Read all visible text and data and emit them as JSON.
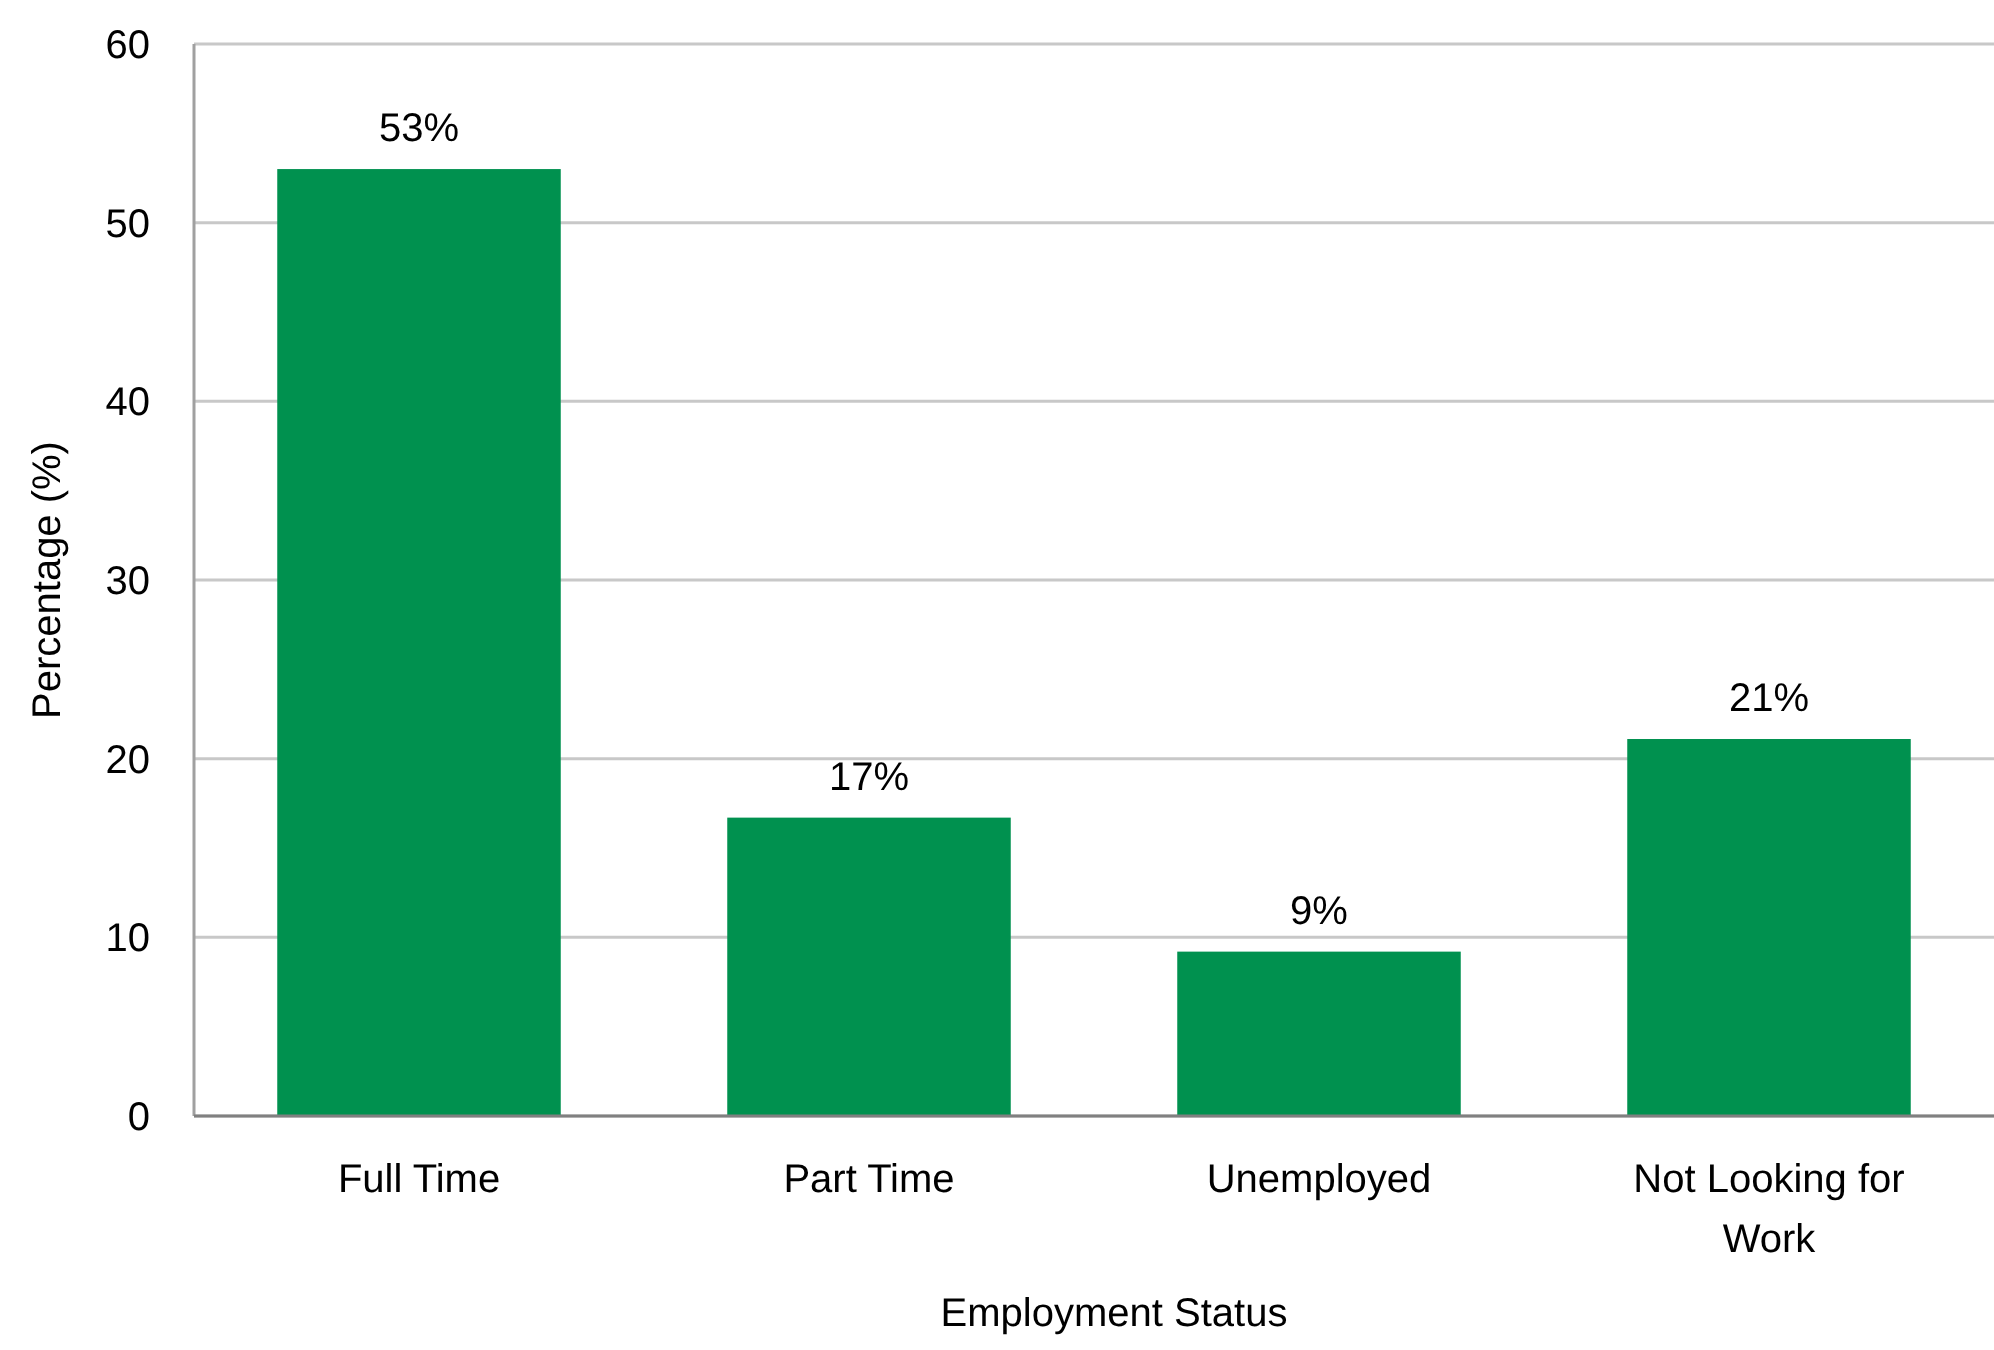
{
  "chart_data": {
    "type": "bar",
    "xlabel": "Employment Status",
    "ylabel": "Percentage (%)",
    "categories": [
      "Full Time",
      "Part Time",
      "Unemployed",
      "Not Looking for Work"
    ],
    "values": [
      53,
      16.7,
      9.2,
      21.1
    ],
    "value_labels": [
      "53%",
      "17%",
      "9%",
      "21%"
    ],
    "color": "#00914f",
    "ylim": [
      0,
      60
    ],
    "yticks": [
      0,
      10,
      20,
      30,
      40,
      50,
      60
    ],
    "grid": "y"
  }
}
